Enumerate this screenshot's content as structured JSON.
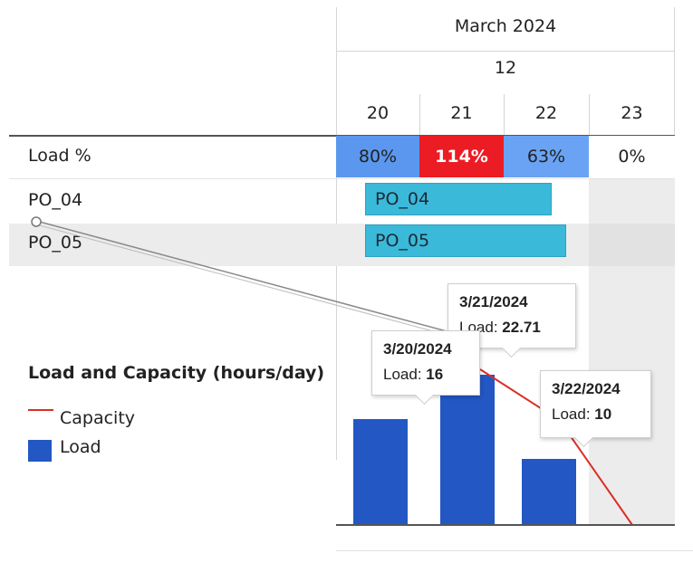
{
  "timeline": {
    "month": "March 2024",
    "week": "12",
    "days": [
      "20",
      "21",
      "22",
      "23"
    ]
  },
  "load_row": {
    "label": "Load %",
    "cells": [
      {
        "value": "80%",
        "color": "#5b97ef"
      },
      {
        "value": "114%",
        "color": "#ec1c24"
      },
      {
        "value": "63%",
        "color": "#6aa3f3"
      },
      {
        "value": "0%",
        "color": "#ffffff"
      }
    ]
  },
  "resources": [
    {
      "label": "PO_04",
      "bar_label": "PO_04"
    },
    {
      "label": "PO_05",
      "bar_label": "PO_05"
    }
  ],
  "legend": {
    "title": "Load and Capacity (hours/day)",
    "items": [
      {
        "label": "Capacity",
        "color": "#d93025"
      },
      {
        "label": "Load",
        "color": "#2257c4"
      }
    ]
  },
  "tooltips": [
    {
      "date": "3/21/2024",
      "metric": "Load:",
      "value": "22.71"
    },
    {
      "date": "3/20/2024",
      "metric": "Load:",
      "value": "16"
    },
    {
      "date": "3/22/2024",
      "metric": "Load:",
      "value": "10"
    }
  ],
  "chart_data": {
    "type": "bar",
    "categories": [
      "3/20/2024",
      "3/21/2024",
      "3/22/2024",
      "3/23/2024"
    ],
    "series": [
      {
        "name": "Load",
        "values": [
          16,
          22.71,
          10,
          0
        ]
      }
    ],
    "xlabel": "",
    "ylabel": ""
  }
}
